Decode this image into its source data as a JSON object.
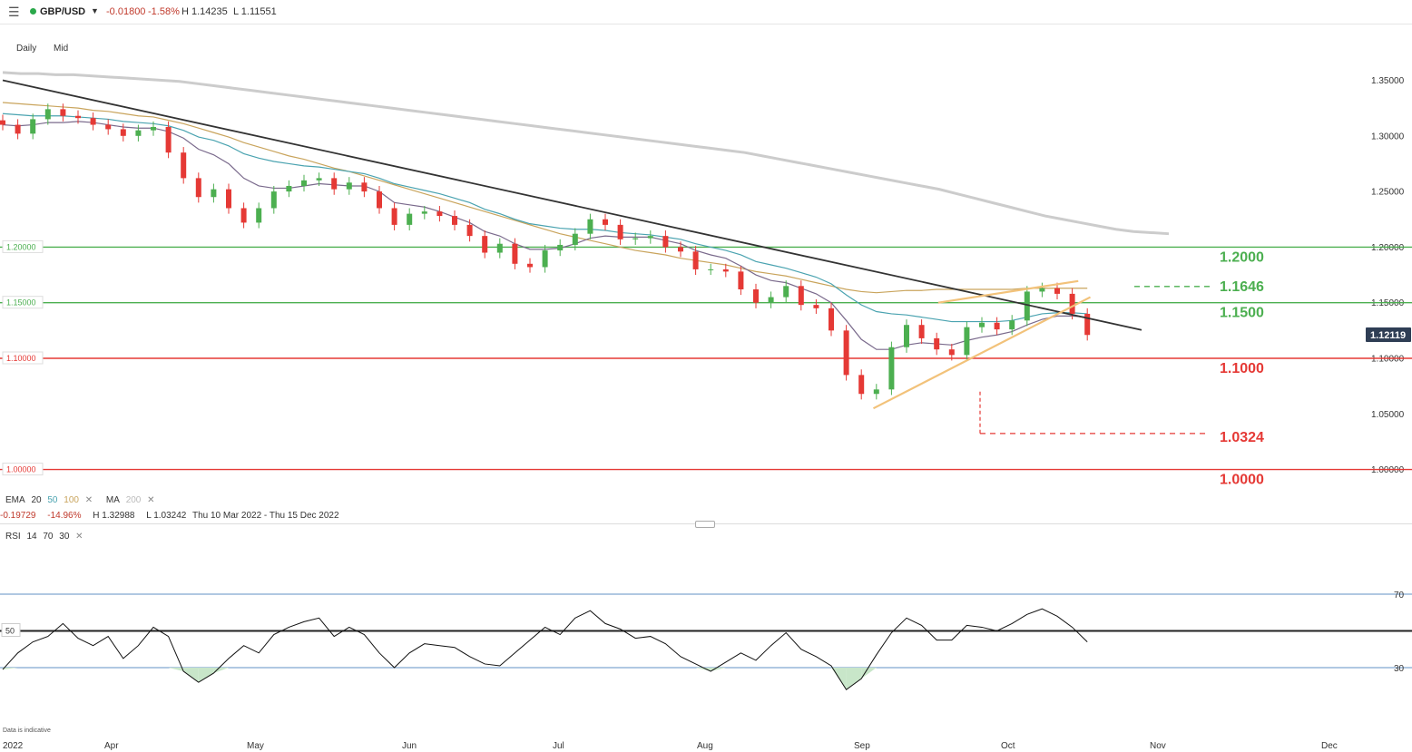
{
  "header": {
    "menu_icon": "hamburger-menu-icon",
    "status_color": "#2aa84a",
    "symbol": "GBP/USD",
    "dropdown_icon": "caret-down-icon",
    "change": "-0.01800",
    "change_pct": "-1.58%",
    "high": "H 1.14235",
    "low": "L 1.11551"
  },
  "timeframes": [
    "Daily",
    "Mid"
  ],
  "indicators": {
    "ema_label": "EMA",
    "ema_periods": [
      "20",
      "50",
      "100"
    ],
    "ema_colors": [
      "#7a6a8c",
      "#4aa3b0",
      "#c9a45c"
    ],
    "ma_label": "MA",
    "ma_period": "200",
    "ma_color": "#cccccc",
    "remove_icon": "close-icon"
  },
  "range_stats": {
    "change": "-0.19729",
    "change_pct": "-14.96%",
    "high": "H 1.32988",
    "low": "L 1.03242",
    "range": "Thu 10 Mar 2022 - Thu 15 Dec 2022"
  },
  "rsi": {
    "label": "RSI",
    "params": [
      "14",
      "70",
      "30"
    ],
    "mid_label": "50",
    "upper_label": "70",
    "lower_label": "30"
  },
  "disclaimer": "Data is indicative",
  "chart_data": {
    "type": "candlestick",
    "instrument": "GBP/USD",
    "timeframe": "Daily",
    "price_axis": {
      "ylim": [
        1.0,
        1.35
      ],
      "ticks": [
        "1.35000",
        "1.30000",
        "1.25000",
        "1.20000",
        "1.15000",
        "1.10000",
        "1.05000",
        "1.00000"
      ]
    },
    "x_axis": {
      "labels": [
        "2022",
        "Apr",
        "May",
        "Jun",
        "Jul",
        "Aug",
        "Sep",
        "Oct",
        "Nov",
        "Dec"
      ]
    },
    "current_price": "1.12119",
    "last_candle": {
      "open": 1.14,
      "high": 1.14235,
      "low": 1.11551,
      "close": 1.12119
    },
    "horizontal_levels": [
      {
        "label": "1.2000",
        "value": 1.2,
        "color": "#4caf50",
        "axis_tag": "1.20000"
      },
      {
        "label": "1.1500",
        "value": 1.15,
        "color": "#4caf50",
        "axis_tag": "1.15000"
      },
      {
        "label": "1.1000",
        "value": 1.1,
        "color": "#e53935",
        "axis_tag": "1.10000"
      },
      {
        "label": "1.0000",
        "value": 1.0,
        "color": "#e53935",
        "axis_tag": "1.00000"
      }
    ],
    "dashed_levels": [
      {
        "label": "1.1646",
        "value": 1.1646,
        "color": "#4caf50"
      },
      {
        "label": "1.0324",
        "value": 1.0324,
        "color": "#e53935"
      }
    ],
    "closes": [
      1.31,
      1.302,
      1.315,
      1.324,
      1.318,
      1.316,
      1.31,
      1.306,
      1.3,
      1.305,
      1.308,
      1.285,
      1.262,
      1.245,
      1.252,
      1.235,
      1.222,
      1.235,
      1.25,
      1.255,
      1.26,
      1.262,
      1.252,
      1.258,
      1.25,
      1.235,
      1.22,
      1.23,
      1.232,
      1.228,
      1.22,
      1.21,
      1.195,
      1.203,
      1.185,
      1.182,
      1.197,
      1.202,
      1.212,
      1.225,
      1.22,
      1.207,
      1.208,
      1.21,
      1.2,
      1.196,
      1.18,
      1.18,
      1.178,
      1.162,
      1.15,
      1.155,
      1.165,
      1.148,
      1.145,
      1.125,
      1.085,
      1.068,
      1.072,
      1.11,
      1.13,
      1.118,
      1.108,
      1.103,
      1.128,
      1.132,
      1.126,
      1.134,
      1.16,
      1.163,
      1.158,
      1.14,
      1.121
    ],
    "rsi_values": [
      29,
      38,
      44,
      47,
      54,
      46,
      42,
      47,
      35,
      42,
      52,
      47,
      28,
      22,
      27,
      35,
      42,
      38,
      48,
      52,
      55,
      57,
      47,
      52,
      48,
      38,
      30,
      38,
      43,
      42,
      41,
      36,
      32,
      31,
      38,
      45,
      52,
      48,
      57,
      61,
      54,
      51,
      46,
      47,
      43,
      36,
      32,
      28,
      33,
      38,
      34,
      42,
      49,
      40,
      36,
      31,
      18,
      24,
      37,
      49,
      57,
      53,
      45,
      45,
      53,
      52,
      50,
      54,
      59,
      62,
      58,
      52,
      44
    ],
    "ema20": [
      1.31,
      1.309,
      1.31,
      1.312,
      1.312,
      1.313,
      1.312,
      1.31,
      1.308,
      1.307,
      1.307,
      1.304,
      1.298,
      1.288,
      1.283,
      1.275,
      1.262,
      1.255,
      1.253,
      1.253,
      1.255,
      1.257,
      1.256,
      1.255,
      1.255,
      1.25,
      1.24,
      1.238,
      1.236,
      1.232,
      1.227,
      1.222,
      1.214,
      1.21,
      1.203,
      1.198,
      1.198,
      1.199,
      1.203,
      1.208,
      1.21,
      1.209,
      1.209,
      1.209,
      1.206,
      1.203,
      1.197,
      1.193,
      1.19,
      1.183,
      1.175,
      1.17,
      1.168,
      1.163,
      1.158,
      1.15,
      1.134,
      1.117,
      1.108,
      1.108,
      1.112,
      1.114,
      1.113,
      1.112,
      1.116,
      1.119,
      1.121,
      1.124,
      1.13,
      1.135,
      1.138,
      1.138,
      1.137
    ],
    "ema50": [
      1.32,
      1.319,
      1.318,
      1.318,
      1.318,
      1.317,
      1.316,
      1.315,
      1.313,
      1.312,
      1.311,
      1.309,
      1.305,
      1.299,
      1.296,
      1.291,
      1.284,
      1.28,
      1.277,
      1.275,
      1.273,
      1.272,
      1.27,
      1.268,
      1.266,
      1.262,
      1.257,
      1.254,
      1.251,
      1.248,
      1.244,
      1.24,
      1.234,
      1.23,
      1.225,
      1.221,
      1.219,
      1.217,
      1.216,
      1.216,
      1.215,
      1.213,
      1.212,
      1.211,
      1.209,
      1.207,
      1.203,
      1.2,
      1.197,
      1.193,
      1.187,
      1.184,
      1.181,
      1.177,
      1.173,
      1.167,
      1.157,
      1.148,
      1.142,
      1.14,
      1.139,
      1.137,
      1.135,
      1.133,
      1.133,
      1.133,
      1.133,
      1.134,
      1.137,
      1.14,
      1.141,
      1.141,
      1.14
    ],
    "ema100": [
      1.33,
      1.329,
      1.328,
      1.327,
      1.326,
      1.325,
      1.323,
      1.322,
      1.32,
      1.318,
      1.317,
      1.314,
      1.311,
      1.307,
      1.303,
      1.299,
      1.294,
      1.29,
      1.286,
      1.282,
      1.279,
      1.275,
      1.271,
      1.268,
      1.264,
      1.26,
      1.256,
      1.252,
      1.248,
      1.244,
      1.24,
      1.236,
      1.232,
      1.228,
      1.224,
      1.22,
      1.216,
      1.212,
      1.209,
      1.206,
      1.203,
      1.2,
      1.197,
      1.195,
      1.193,
      1.19,
      1.188,
      1.186,
      1.184,
      1.181,
      1.178,
      1.176,
      1.174,
      1.171,
      1.168,
      1.165,
      1.162,
      1.16,
      1.159,
      1.16,
      1.161,
      1.161,
      1.162,
      1.162,
      1.162,
      1.162,
      1.162,
      1.162,
      1.163,
      1.163,
      1.163,
      1.163,
      1.163
    ],
    "ma200": [
      1.357,
      1.356,
      1.356,
      1.355,
      1.355,
      1.354,
      1.353,
      1.352,
      1.351,
      1.35,
      1.349,
      1.347,
      1.345,
      1.343,
      1.341,
      1.339,
      1.337,
      1.335,
      1.333,
      1.331,
      1.329,
      1.327,
      1.325,
      1.323,
      1.321,
      1.319,
      1.317,
      1.315,
      1.313,
      1.311,
      1.309,
      1.307,
      1.305,
      1.303,
      1.301,
      1.299,
      1.297,
      1.295,
      1.293,
      1.291,
      1.289,
      1.287,
      1.285,
      1.282,
      1.279,
      1.276,
      1.273,
      1.27,
      1.267,
      1.264,
      1.261,
      1.258,
      1.255,
      1.252,
      1.248,
      1.244,
      1.24,
      1.236,
      1.232,
      1.228,
      1.225,
      1.222,
      1.219,
      1.216,
      1.214,
      1.213,
      1.212
    ],
    "trendlines": [
      {
        "name": "descending",
        "color": "#333333",
        "from": [
          0,
          1.35
        ],
        "to": [
          75.6,
          1.1255
        ]
      },
      {
        "name": "wedge-lower",
        "color": "#f2c27a",
        "from": [
          57.8,
          1.055
        ],
        "to": [
          72.2,
          1.155
        ]
      },
      {
        "name": "wedge-upper",
        "color": "#f2c27a",
        "from": [
          62.1,
          1.15
        ],
        "to": [
          71.4,
          1.1695
        ]
      }
    ]
  }
}
